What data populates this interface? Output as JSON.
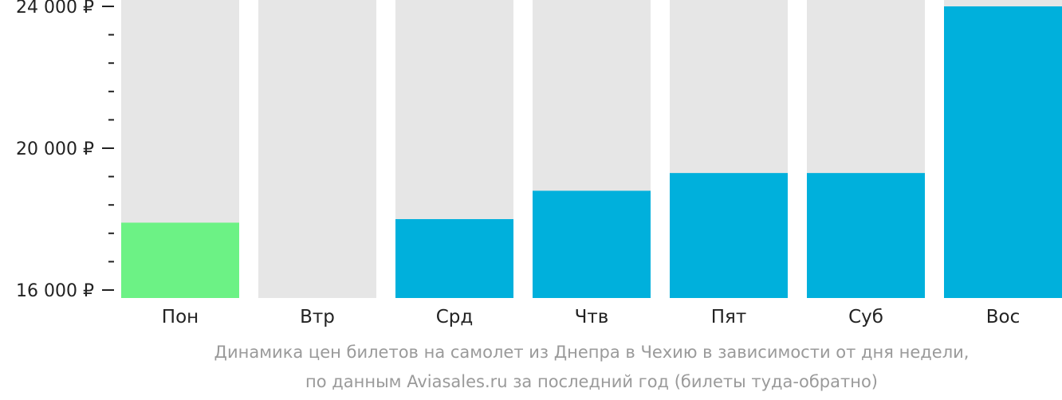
{
  "chart_data": {
    "type": "bar",
    "categories": [
      "Пон",
      "Втр",
      "Срд",
      "Чтв",
      "Пят",
      "Суб",
      "Вос"
    ],
    "values": [
      17900,
      null,
      18000,
      18800,
      19300,
      19300,
      24000
    ],
    "ylim": [
      16000,
      24000
    ],
    "y_ticks": [
      16000,
      20000,
      24000
    ],
    "y_tick_labels": [
      "16 000 ₽",
      "20 000 ₽",
      "24 000 ₽"
    ],
    "y_minor_step": 800,
    "grid": false,
    "legend": "none",
    "colors": {
      "background_bar": "#e6e6e6",
      "bar": "#00b0dc",
      "lowest_bar": "#6cf285",
      "axis": "#222222"
    },
    "highlight_index": 0
  },
  "caption": {
    "line1": "Динамика цен билетов на самолет из Днепра в Чехию в зависимости от дня недели,",
    "line2": "по данным Aviasales.ru за последний год (билеты туда-обратно)"
  }
}
